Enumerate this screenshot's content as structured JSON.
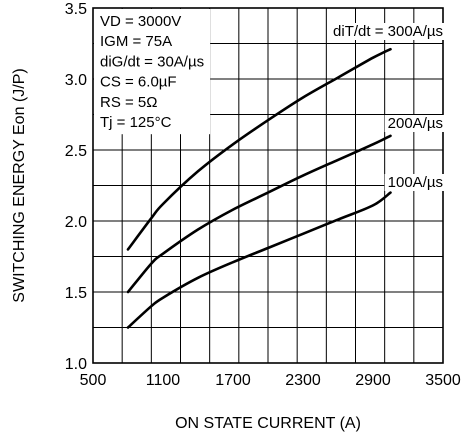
{
  "chart_data": {
    "type": "line",
    "xlabel": "ON STATE CURRENT  (A)",
    "ylabel": "SWITCHING ENERGY  Eon (J/P)",
    "xlim": [
      500,
      3500
    ],
    "ylim": [
      1.0,
      3.5
    ],
    "x_ticks": [
      "500",
      "1100",
      "1700",
      "2300",
      "2900",
      "3500"
    ],
    "y_ticks": [
      "1.0",
      "1.5",
      "2.0",
      "2.5",
      "3.0",
      "3.5"
    ],
    "grid": true,
    "conditions": [
      "VD = 3000V",
      "IGM = 75A",
      "diG/dt = 30A/µs",
      "CS = 6.0µF",
      "RS = 5Ω",
      "Tj = 125°C"
    ],
    "series": [
      {
        "name": "diT/dt = 300A/µs",
        "x": [
          800,
          1000,
          1100,
          1400,
          1700,
          2000,
          2300,
          2600,
          2900,
          3050
        ],
        "y": [
          1.8,
          2.02,
          2.12,
          2.35,
          2.54,
          2.71,
          2.87,
          3.01,
          3.15,
          3.21
        ]
      },
      {
        "name": "200A/µs",
        "x": [
          800,
          1000,
          1100,
          1400,
          1700,
          2000,
          2300,
          2600,
          2900,
          3050
        ],
        "y": [
          1.5,
          1.7,
          1.77,
          1.94,
          2.08,
          2.2,
          2.32,
          2.43,
          2.54,
          2.6
        ]
      },
      {
        "name": "100A/µs",
        "x": [
          800,
          1000,
          1100,
          1400,
          1700,
          2000,
          2300,
          2600,
          2900,
          3050
        ],
        "y": [
          1.25,
          1.4,
          1.46,
          1.6,
          1.71,
          1.81,
          1.91,
          2.01,
          2.11,
          2.2
        ]
      }
    ]
  }
}
